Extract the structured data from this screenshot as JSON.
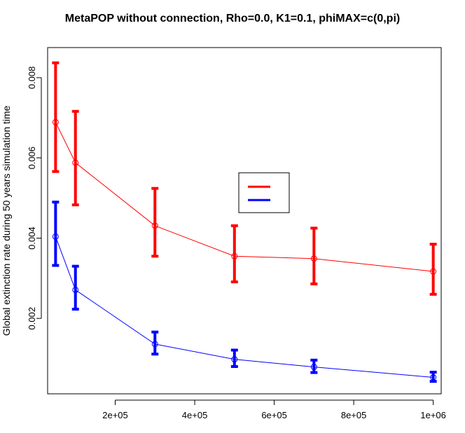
{
  "chart_data": {
    "type": "line",
    "title": "MetaPOP without connection, Rho=0.0, K1=0.1, phiMAX=c(0,pi)",
    "xlabel": "",
    "ylabel": "Global extinction rate during 50 years simulation time",
    "xlim": [
      30000,
      1020000
    ],
    "ylim": [
      0.00012,
      0.00875
    ],
    "x_ticks": [
      200000,
      400000,
      600000,
      800000,
      1000000
    ],
    "x_tick_labels": [
      "2e+05",
      "4e+05",
      "6e+05",
      "8e+05",
      "1e+06"
    ],
    "y_ticks": [
      0.002,
      0.004,
      0.006,
      0.008
    ],
    "y_tick_labels": [
      "0.002",
      "0.004",
      "0.006",
      "0.008"
    ],
    "grid": false,
    "legend": {
      "position": "center-right",
      "entries": [
        "",
        ""
      ]
    },
    "series": [
      {
        "color": "#ff0000",
        "x": [
          50000,
          100000,
          300000,
          500000,
          700000,
          1000000
        ],
        "y": [
          0.00689,
          0.00588,
          0.00431,
          0.00355,
          0.00349,
          0.00317
        ],
        "lower": [
          0.00566,
          0.00483,
          0.00355,
          0.00291,
          0.00286,
          0.0026
        ],
        "upper": [
          0.00837,
          0.00716,
          0.00524,
          0.00431,
          0.00425,
          0.00385
        ]
      },
      {
        "color": "#0000ff",
        "x": [
          50000,
          100000,
          300000,
          500000,
          700000,
          1000000
        ],
        "y": [
          0.00404,
          0.00271,
          0.00136,
          0.00098,
          0.00079,
          0.00053
        ],
        "lower": [
          0.00332,
          0.00223,
          0.00111,
          0.0008,
          0.00065,
          0.00043
        ],
        "upper": [
          0.0049,
          0.0033,
          0.00166,
          0.00121,
          0.00096,
          0.00066
        ]
      }
    ]
  }
}
